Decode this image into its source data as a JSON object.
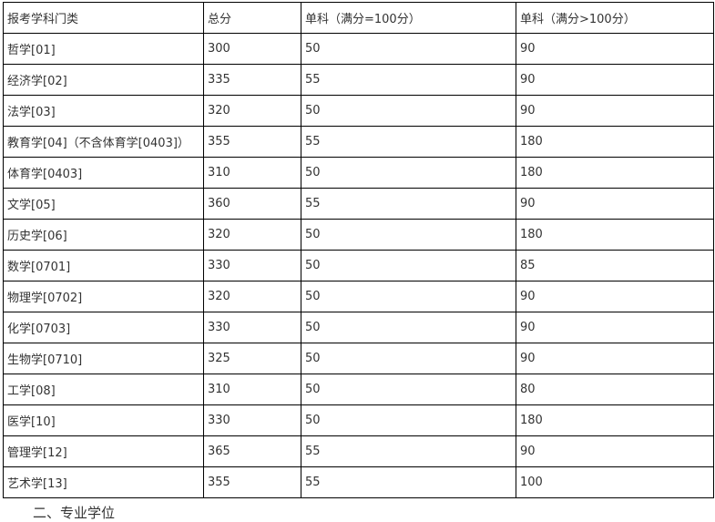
{
  "table": {
    "headers": [
      "报考学科门类",
      "总分",
      "单科（满分=100分）",
      "单科（满分>100分）"
    ],
    "rows": [
      [
        "哲学[01]",
        "300",
        "50",
        "90"
      ],
      [
        "经济学[02]",
        "335",
        "55",
        "90"
      ],
      [
        "法学[03]",
        "320",
        "50",
        "90"
      ],
      [
        "教育学[04]（不含体育学[0403]）",
        "355",
        "55",
        "180"
      ],
      [
        "体育学[0403]",
        "310",
        "50",
        "180"
      ],
      [
        "文学[05]",
        "360",
        "55",
        "90"
      ],
      [
        "历史学[06]",
        "320",
        "50",
        "180"
      ],
      [
        "数学[0701]",
        "330",
        "50",
        "85"
      ],
      [
        "物理学[0702]",
        "320",
        "50",
        "90"
      ],
      [
        "化学[0703]",
        "330",
        "50",
        "90"
      ],
      [
        "生物学[0710]",
        "325",
        "50",
        "90"
      ],
      [
        "工学[08]",
        "310",
        "50",
        "80"
      ],
      [
        "医学[10]",
        "330",
        "50",
        "180"
      ],
      [
        "管理学[12]",
        "365",
        "55",
        "90"
      ],
      [
        "艺术学[13]",
        "355",
        "55",
        "100"
      ]
    ]
  },
  "footer": {
    "heading": "二、专业学位"
  }
}
